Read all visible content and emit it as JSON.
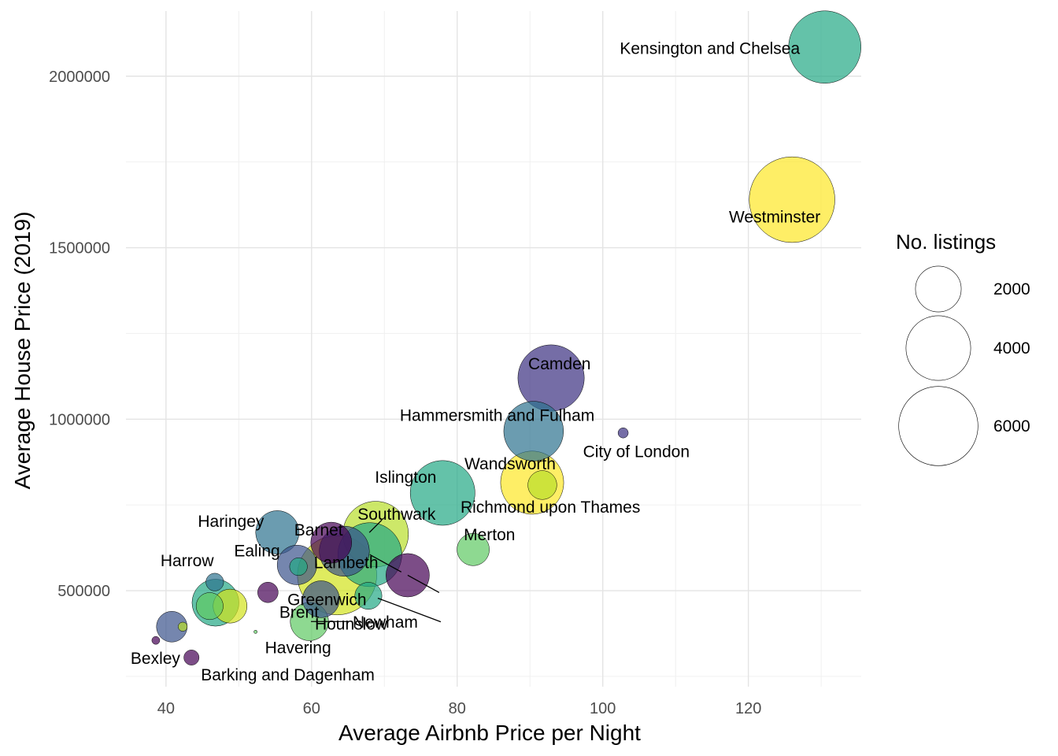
{
  "chart_data": {
    "type": "scatter",
    "xlabel": "Average Airbnb Price per Night",
    "ylabel": "Average House Price (2019)",
    "xlim": [
      34.5,
      135.5
    ],
    "ylim": [
      220000,
      2190000
    ],
    "x_ticks": [
      40,
      60,
      80,
      100,
      120
    ],
    "y_ticks": [
      500000,
      1000000,
      1500000,
      2000000
    ],
    "x_tick_labels": [
      "40",
      "60",
      "80",
      "100",
      "120"
    ],
    "y_tick_labels": [
      "500000",
      "1000000",
      "1500000",
      "2000000"
    ],
    "grid": true,
    "legend": {
      "title": "No. listings",
      "position": "right",
      "entries": [
        {
          "value": 2000,
          "label": "2000"
        },
        {
          "value": 4000,
          "label": "4000"
        },
        {
          "value": 6000,
          "label": "6000"
        }
      ]
    },
    "points": [
      {
        "label": "Kensington and Chelsea",
        "x": 130.5,
        "y": 2085000,
        "size": 5000,
        "color": "#22a884"
      },
      {
        "label": "Westminster",
        "x": 126.0,
        "y": 1640000,
        "size": 7000,
        "color": "#fde725"
      },
      {
        "label": "Camden",
        "x": 92.9,
        "y": 1120000,
        "size": 4200,
        "color": "#3b2f80"
      },
      {
        "label": "Hammersmith and Fulham",
        "x": 90.5,
        "y": 965000,
        "size": 3400,
        "color": "#2c728e"
      },
      {
        "label": "City of London",
        "x": 102.8,
        "y": 960000,
        "size": 100,
        "color": "#3b2f80"
      },
      {
        "label": "Wandsworth",
        "x": 90.3,
        "y": 815000,
        "size": 3800,
        "color": "#fde725"
      },
      {
        "label": "Richmond upon Thames",
        "x": 91.7,
        "y": 808000,
        "size": 800,
        "color": "#b8de29"
      },
      {
        "label": "Islington",
        "x": 78.0,
        "y": 785000,
        "size": 4000,
        "color": "#22a884"
      },
      {
        "label": "Haringey",
        "x": 55.3,
        "y": 670000,
        "size": 1800,
        "color": "#2c728e"
      },
      {
        "label": "Barnet",
        "x": 62.7,
        "y": 640000,
        "size": 1600,
        "color": "#440154"
      },
      {
        "label": "Southwark",
        "x": 68.8,
        "y": 665000,
        "size": 4100,
        "color": "#b8de29"
      },
      {
        "label": "Merton",
        "x": 82.2,
        "y": 620000,
        "size": 1000,
        "color": "#5ec962"
      },
      {
        "label": "Ealing",
        "x": 58.0,
        "y": 575000,
        "size": 1500,
        "color": "#3b528b"
      },
      {
        "label": "Lambeth",
        "x": 68.0,
        "y": 605000,
        "size": 3900,
        "color": "#22a884"
      },
      {
        "label": "Brent",
        "x": 73.2,
        "y": 545000,
        "size": 1800,
        "color": "#440154"
      },
      {
        "label": "Harrow",
        "x": 46.7,
        "y": 525000,
        "size": 300,
        "color": "#2c728e"
      },
      {
        "label": "Greenwich",
        "x": 63.5,
        "y": 545000,
        "size": 6000,
        "color": "#d1e21b"
      },
      {
        "label": "Hounslow",
        "x": 67.8,
        "y": 485000,
        "size": 700,
        "color": "#22a884"
      },
      {
        "label": "Newham",
        "x": 59.7,
        "y": 410000,
        "size": 1400,
        "color": "#5ec962"
      },
      {
        "label": "Havering",
        "x": 52.3,
        "y": 380000,
        "size": 10,
        "color": "#5ec962"
      },
      {
        "label": "Bexley",
        "x": 38.6,
        "y": 355000,
        "size": 60,
        "color": "#440154"
      },
      {
        "label": "Barking and Dagenham",
        "x": 43.5,
        "y": 305000,
        "size": 220,
        "color": "#440154"
      },
      {
        "label": "",
        "x": 40.8,
        "y": 395000,
        "size": 900,
        "color": "#3b528b"
      },
      {
        "label": "",
        "x": 42.3,
        "y": 395000,
        "size": 80,
        "color": "#b8de29"
      },
      {
        "label": "",
        "x": 46.8,
        "y": 465000,
        "size": 2100,
        "color": "#22a884"
      },
      {
        "label": "",
        "x": 46.0,
        "y": 455000,
        "size": 700,
        "color": "#5ec962"
      },
      {
        "label": "",
        "x": 48.8,
        "y": 455000,
        "size": 1100,
        "color": "#d1e21b"
      },
      {
        "label": "",
        "x": 54.0,
        "y": 495000,
        "size": 400,
        "color": "#440154"
      },
      {
        "label": "",
        "x": 61.3,
        "y": 475000,
        "size": 1300,
        "color": "#3b528b"
      },
      {
        "label": "",
        "x": 58.2,
        "y": 570000,
        "size": 300,
        "color": "#22a884"
      },
      {
        "label": "",
        "x": 64.5,
        "y": 615000,
        "size": 2400,
        "color": "#3b528b"
      }
    ]
  }
}
